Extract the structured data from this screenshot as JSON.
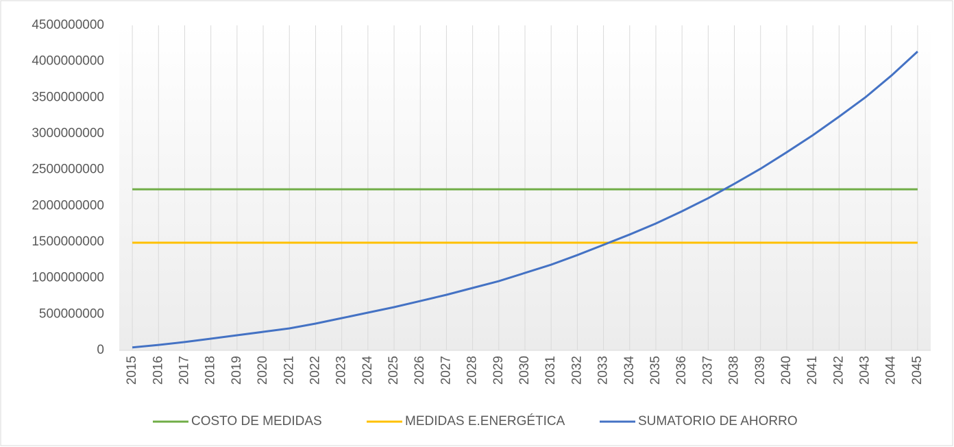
{
  "chart_data": {
    "type": "line",
    "categories": [
      "2015",
      "2016",
      "2017",
      "2018",
      "2019",
      "2020",
      "2021",
      "2022",
      "2023",
      "2024",
      "2025",
      "2026",
      "2027",
      "2028",
      "2029",
      "2030",
      "2031",
      "2032",
      "2033",
      "2034",
      "2035",
      "2036",
      "2037",
      "2038",
      "2039",
      "2040",
      "2041",
      "2042",
      "2043",
      "2044",
      "2045"
    ],
    "series": [
      {
        "name": "COSTO DE MEDIDAS",
        "color": "#70ad47",
        "values": [
          2230000000,
          2230000000,
          2230000000,
          2230000000,
          2230000000,
          2230000000,
          2230000000,
          2230000000,
          2230000000,
          2230000000,
          2230000000,
          2230000000,
          2230000000,
          2230000000,
          2230000000,
          2230000000,
          2230000000,
          2230000000,
          2230000000,
          2230000000,
          2230000000,
          2230000000,
          2230000000,
          2230000000,
          2230000000,
          2230000000,
          2230000000,
          2230000000,
          2230000000,
          2230000000,
          2230000000
        ]
      },
      {
        "name": "MEDIDAS E.ENERGÉTICA",
        "color": "#ffc000",
        "values": [
          1490000000,
          1490000000,
          1490000000,
          1490000000,
          1490000000,
          1490000000,
          1490000000,
          1490000000,
          1490000000,
          1490000000,
          1490000000,
          1490000000,
          1490000000,
          1490000000,
          1490000000,
          1490000000,
          1490000000,
          1490000000,
          1490000000,
          1490000000,
          1490000000,
          1490000000,
          1490000000,
          1490000000,
          1490000000,
          1490000000,
          1490000000,
          1490000000,
          1490000000,
          1490000000,
          1490000000
        ]
      },
      {
        "name": "SUMATORIO DE AHORRO",
        "color": "#4472c4",
        "values": [
          40000000,
          75000000,
          115000000,
          161000000,
          209000000,
          256000000,
          304000000,
          370000000,
          446000000,
          522000000,
          598000000,
          683000000,
          769000000,
          864000000,
          958000000,
          1072000000,
          1186000000,
          1319000000,
          1461000000,
          1604000000,
          1756000000,
          1926000000,
          2107000000,
          2306000000,
          2515000000,
          2743000000,
          2980000000,
          3236000000,
          3502000000,
          3805000000,
          4138000000
        ]
      }
    ],
    "ylim": [
      0,
      4500000000
    ],
    "yticks": [
      0,
      500000000,
      1000000000,
      1500000000,
      2000000000,
      2500000000,
      3000000000,
      3500000000,
      4000000000,
      4500000000
    ],
    "grid": true,
    "legend": "bottom"
  }
}
